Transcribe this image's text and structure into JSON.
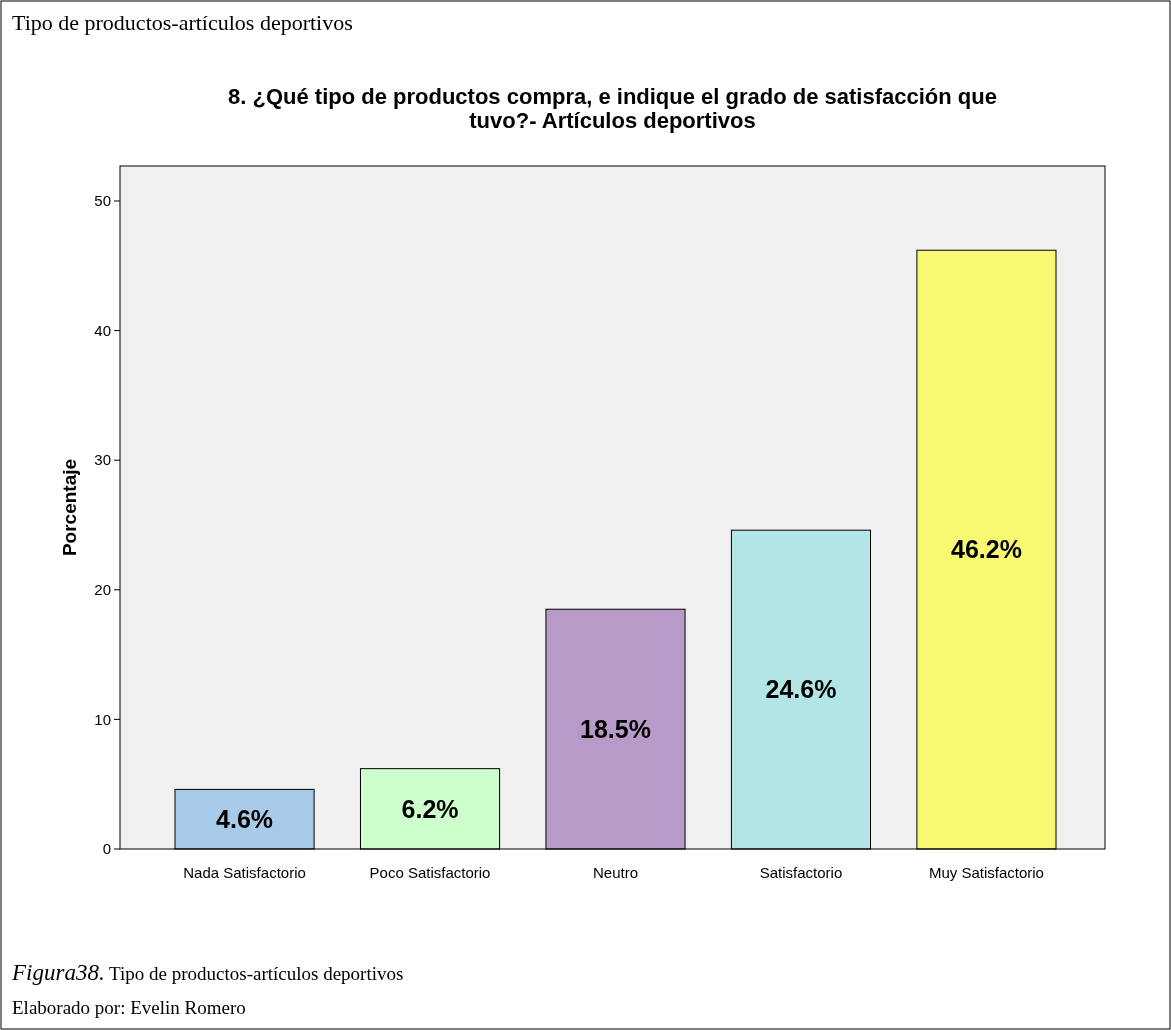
{
  "chart_data": {
    "type": "bar",
    "title": "8. ¿Qué tipo de productos compra, e indique el grado de satisfacción que tuvo?- Artículos deportivos",
    "categories": [
      "Nada Satisfactorio",
      "Poco Satisfactorio",
      "Neutro",
      "Satisfactorio",
      "Muy Satisfactorio"
    ],
    "values": [
      4.6,
      6.2,
      18.5,
      24.6,
      46.2
    ],
    "colors": [
      "#a6cae8",
      "#ccffcc",
      "#b89ac8",
      "#b3e5e6",
      "#f9f871"
    ],
    "value_labels": [
      "4.6%",
      "6.2%",
      "18.5%",
      "24.6%",
      "46.2%"
    ],
    "ylabel": "Porcentaje",
    "ylim": [
      0,
      52.7
    ],
    "yticks": [
      0,
      10,
      20,
      30,
      40,
      50
    ],
    "grid": false,
    "annotations": [
      "Tipo de productos-artículos deportivos",
      "Figura38. Tipo de productos-artículos deportivos",
      "Elaborado por: Evelin Romero"
    ]
  }
}
